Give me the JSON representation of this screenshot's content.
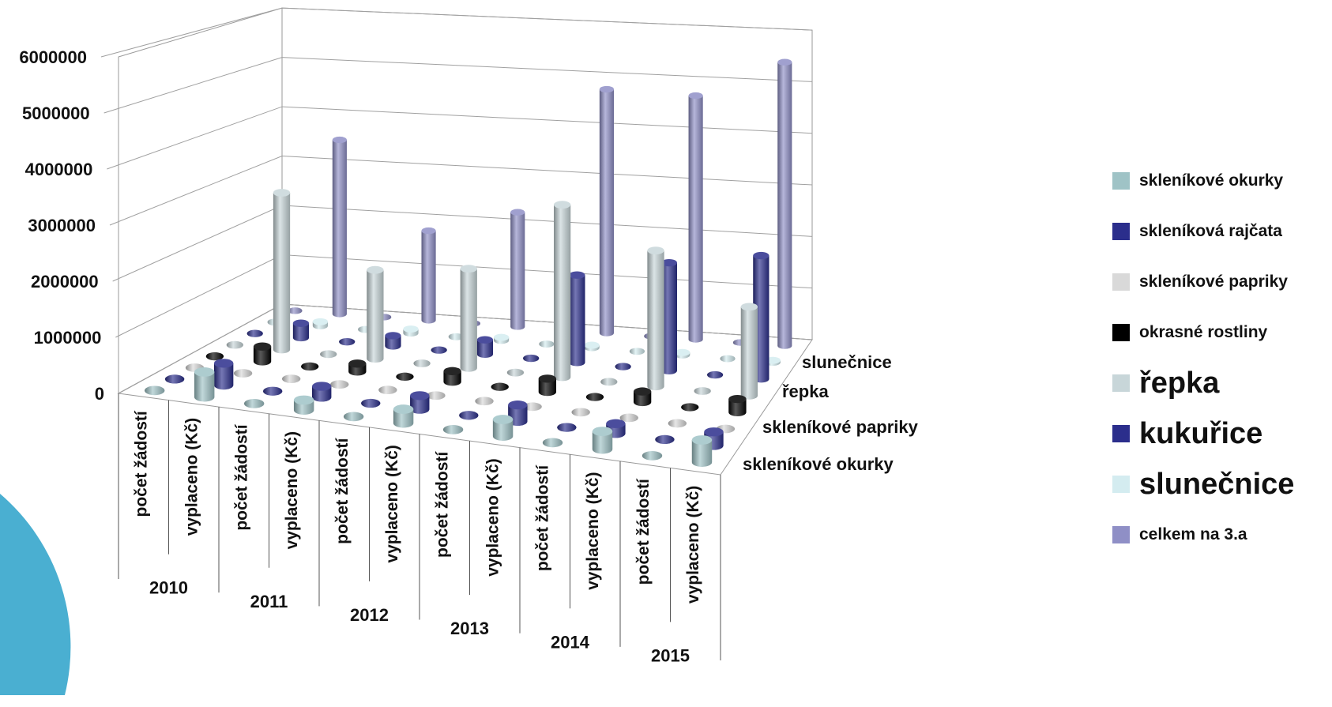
{
  "chart_data": {
    "type": "bar",
    "style": "3d-cylinder",
    "y_ticks": [
      "0",
      "1000000",
      "2000000",
      "3000000",
      "4000000",
      "5000000",
      "6000000"
    ],
    "ylim": [
      0,
      6000000
    ],
    "years": [
      "2010",
      "2011",
      "2012",
      "2013",
      "2014",
      "2015"
    ],
    "categories": [
      "počet žádostí",
      "vyplaceno (Kč)",
      "počet žádostí",
      "vyplaceno (Kč)",
      "počet žádostí",
      "vyplaceno (Kč)",
      "počet žádostí",
      "vyplaceno (Kč)",
      "počet žádostí",
      "vyplaceno (Kč)",
      "počet žádostí",
      "vyplaceno (Kč)"
    ],
    "depth_labels": [
      "skleníkové okurky",
      "skleníkové papriky",
      "řepka",
      "slunečnice"
    ],
    "legend_position": "right",
    "series": [
      {
        "name": "skleníkové okurky",
        "color": "#9fc3c6",
        "values": [
          0,
          450000,
          0,
          180000,
          0,
          250000,
          0,
          300000,
          0,
          320000,
          0,
          400000
        ]
      },
      {
        "name": "skleníková rajčata",
        "color": "#2b2e8c",
        "values": [
          0,
          400000,
          0,
          200000,
          0,
          250000,
          0,
          300000,
          0,
          180000,
          0,
          250000
        ]
      },
      {
        "name": "skleníkové papriky",
        "color": "#d9d9d9",
        "values": [
          0,
          0,
          0,
          0,
          0,
          0,
          0,
          0,
          0,
          0,
          0,
          0
        ]
      },
      {
        "name": "okrasné rostliny",
        "color": "#000000",
        "values": [
          0,
          280000,
          0,
          150000,
          0,
          200000,
          0,
          250000,
          0,
          200000,
          0,
          250000
        ]
      },
      {
        "name": "řepka",
        "color": "#c8d6d9",
        "values": [
          0,
          3000000,
          0,
          1700000,
          0,
          1900000,
          0,
          3300000,
          0,
          2600000,
          0,
          1700000
        ]
      },
      {
        "name": "kukuřice",
        "color": "#2b2e8c",
        "values": [
          0,
          280000,
          0,
          200000,
          0,
          280000,
          0,
          1700000,
          0,
          2100000,
          0,
          2400000
        ]
      },
      {
        "name": "slunečnice",
        "color": "#d4ecf0",
        "values": [
          0,
          80000,
          0,
          80000,
          0,
          60000,
          0,
          50000,
          0,
          50000,
          0,
          40000
        ]
      },
      {
        "name": "celkem na 3.a",
        "color": "#8f8fc6",
        "values": [
          0,
          3500000,
          0,
          1800000,
          0,
          2300000,
          0,
          4900000,
          0,
          4900000,
          0,
          5700000
        ]
      }
    ]
  },
  "legend": [
    {
      "label": "skleníkové okurky",
      "size": "small",
      "color": "#9fc3c6"
    },
    {
      "label": "skleníková rajčata",
      "size": "small",
      "color": "#2b2e8c"
    },
    {
      "label": "skleníkové papriky",
      "size": "small",
      "color": "#d9d9d9"
    },
    {
      "label": "okrasné rostliny",
      "size": "small",
      "color": "#000000"
    },
    {
      "label": "řepka",
      "size": "large",
      "color": "#c8d6d9"
    },
    {
      "label": "kukuřice",
      "size": "large",
      "color": "#2b2e8c"
    },
    {
      "label": "slunečnice",
      "size": "large",
      "color": "#d4ecf0"
    },
    {
      "label": "celkem na 3.a",
      "size": "small",
      "color": "#8f8fc6"
    }
  ],
  "decor": {
    "corner_shape_color": "#4aafd1"
  }
}
